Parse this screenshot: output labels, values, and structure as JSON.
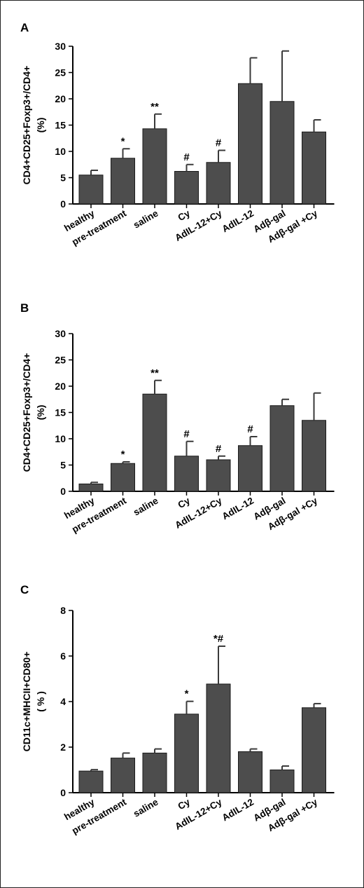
{
  "chart_data": [
    {
      "panel": "A",
      "type": "bar",
      "categories": [
        "healthy",
        "pre-treatment",
        "saline",
        "Cy",
        "AdIL-12+Cy",
        "AdIL-12",
        "Adβ-gal",
        "Adβ-gal +Cy"
      ],
      "values": [
        5.5,
        8.7,
        14.3,
        6.2,
        7.9,
        22.9,
        19.5,
        13.7
      ],
      "errors": [
        0.9,
        1.8,
        2.8,
        1.3,
        2.3,
        4.9,
        9.6,
        2.3
      ],
      "annotations": [
        "",
        "*",
        "**",
        "#",
        "#",
        "",
        "",
        ""
      ],
      "ylabel_line1": "CD4+CD25+Foxp3+/CD4+",
      "ylabel_line2": "(%)",
      "ylim": [
        0,
        30
      ],
      "yticks": [
        0,
        5,
        10,
        15,
        20,
        25,
        30
      ]
    },
    {
      "panel": "B",
      "type": "bar",
      "categories": [
        "healthy",
        "pre-treatment",
        "saline",
        "Cy",
        "AdIL-12+Cy",
        "AdIL-12",
        "Adβ-gal",
        "Adβ-gal +Cy"
      ],
      "values": [
        1.4,
        5.3,
        18.5,
        6.7,
        6.0,
        8.7,
        16.3,
        13.5
      ],
      "errors": [
        0.3,
        0.3,
        2.6,
        2.8,
        0.7,
        1.7,
        1.2,
        5.2
      ],
      "annotations": [
        "",
        "*",
        "**",
        "#",
        "#",
        "#",
        "",
        ""
      ],
      "ylabel_line1": "CD4+CD25+Foxp3+/CD4+",
      "ylabel_line2": "(%)",
      "ylim": [
        0,
        30
      ],
      "yticks": [
        0,
        5,
        10,
        15,
        20,
        25,
        30
      ]
    },
    {
      "panel": "C",
      "type": "bar",
      "categories": [
        "healthy",
        "pre-treatment",
        "saline",
        "Cy",
        "AdIL-12+Cy",
        "AdIL-12",
        "Adβ-gal",
        "Adβ-gal +Cy"
      ],
      "values": [
        0.95,
        1.52,
        1.74,
        3.45,
        4.77,
        1.8,
        1.0,
        3.73
      ],
      "errors": [
        0.06,
        0.22,
        0.18,
        0.56,
        1.66,
        0.12,
        0.17,
        0.18
      ],
      "annotations": [
        "",
        "",
        "",
        "*",
        "*#",
        "",
        "",
        ""
      ],
      "ylabel_line1": "CD11c+MHCII+CD80+",
      "ylabel_line2": "( % )",
      "ylim": [
        0,
        8
      ],
      "yticks": [
        0,
        2,
        4,
        6,
        8
      ]
    }
  ],
  "style": {
    "bar_color": "#4d4d4d",
    "axis_color": "#000000"
  }
}
